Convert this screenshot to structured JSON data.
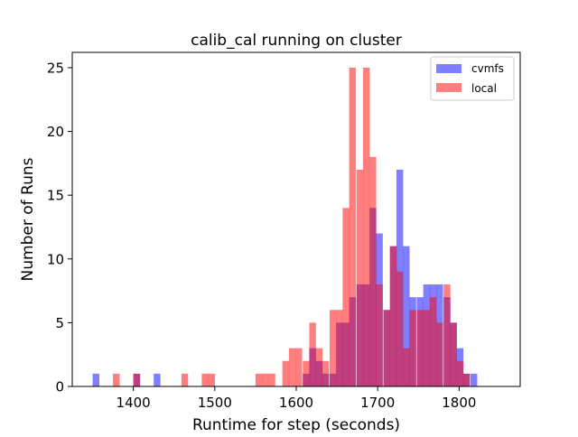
{
  "chart_data": {
    "type": "bar",
    "subtype": "overlapping-histogram",
    "title": "calib_cal running on cluster",
    "xlabel": "Runtime for step (seconds)",
    "ylabel": "Number of Runs",
    "xlim": [
      1325,
      1875
    ],
    "ylim": [
      0,
      26.2
    ],
    "xticks": [
      1400,
      1500,
      1600,
      1700,
      1800
    ],
    "yticks": [
      0,
      5,
      10,
      15,
      20,
      25
    ],
    "bin_width": 8.25,
    "legend_position": "top-right",
    "grid": false,
    "series": [
      {
        "name": "cvmfs",
        "color": "#0000ff",
        "alpha": 0.5,
        "bins": [
          {
            "x": 1350.0,
            "y": 1
          },
          {
            "x": 1400.0,
            "y": 1
          },
          {
            "x": 1425.0,
            "y": 1
          },
          {
            "x": 1608.0,
            "y": 1
          },
          {
            "x": 1616.0,
            "y": 3
          },
          {
            "x": 1624.0,
            "y": 2
          },
          {
            "x": 1632.0,
            "y": 1
          },
          {
            "x": 1641.0,
            "y": 1
          },
          {
            "x": 1649.0,
            "y": 5
          },
          {
            "x": 1657.0,
            "y": 5
          },
          {
            "x": 1665.0,
            "y": 7
          },
          {
            "x": 1674.0,
            "y": 8
          },
          {
            "x": 1682.0,
            "y": 8
          },
          {
            "x": 1690.0,
            "y": 14
          },
          {
            "x": 1698.0,
            "y": 12
          },
          {
            "x": 1707.0,
            "y": 6
          },
          {
            "x": 1715.0,
            "y": 11
          },
          {
            "x": 1723.0,
            "y": 17
          },
          {
            "x": 1731.0,
            "y": 11
          },
          {
            "x": 1739.0,
            "y": 7
          },
          {
            "x": 1748.0,
            "y": 7
          },
          {
            "x": 1756.0,
            "y": 8
          },
          {
            "x": 1764.0,
            "y": 8
          },
          {
            "x": 1772.0,
            "y": 8
          },
          {
            "x": 1781.0,
            "y": 7
          },
          {
            "x": 1789.0,
            "y": 5
          },
          {
            "x": 1797.0,
            "y": 3
          },
          {
            "x": 1805.0,
            "y": 1
          },
          {
            "x": 1814.0,
            "y": 1
          }
        ]
      },
      {
        "name": "local",
        "color": "#ff0000",
        "alpha": 0.5,
        "bins": [
          {
            "x": 1375.0,
            "y": 1
          },
          {
            "x": 1400.0,
            "y": 1
          },
          {
            "x": 1459.0,
            "y": 1
          },
          {
            "x": 1484.0,
            "y": 1
          },
          {
            "x": 1492.0,
            "y": 1
          },
          {
            "x": 1550.0,
            "y": 1
          },
          {
            "x": 1558.0,
            "y": 1
          },
          {
            "x": 1566.0,
            "y": 1
          },
          {
            "x": 1583.0,
            "y": 2
          },
          {
            "x": 1591.0,
            "y": 3
          },
          {
            "x": 1599.0,
            "y": 3
          },
          {
            "x": 1608.0,
            "y": 2
          },
          {
            "x": 1616.0,
            "y": 5
          },
          {
            "x": 1624.0,
            "y": 3
          },
          {
            "x": 1632.0,
            "y": 2
          },
          {
            "x": 1641.0,
            "y": 6
          },
          {
            "x": 1649.0,
            "y": 6
          },
          {
            "x": 1657.0,
            "y": 14
          },
          {
            "x": 1665.0,
            "y": 25
          },
          {
            "x": 1674.0,
            "y": 17
          },
          {
            "x": 1682.0,
            "y": 25
          },
          {
            "x": 1690.0,
            "y": 18
          },
          {
            "x": 1698.0,
            "y": 8
          },
          {
            "x": 1707.0,
            "y": 6
          },
          {
            "x": 1715.0,
            "y": 11
          },
          {
            "x": 1723.0,
            "y": 9
          },
          {
            "x": 1731.0,
            "y": 3
          },
          {
            "x": 1739.0,
            "y": 6
          },
          {
            "x": 1748.0,
            "y": 6
          },
          {
            "x": 1756.0,
            "y": 6
          },
          {
            "x": 1764.0,
            "y": 7
          },
          {
            "x": 1772.0,
            "y": 5
          },
          {
            "x": 1781.0,
            "y": 8
          },
          {
            "x": 1789.0,
            "y": 5
          },
          {
            "x": 1797.0,
            "y": 2
          },
          {
            "x": 1805.0,
            "y": 1
          }
        ]
      }
    ]
  }
}
